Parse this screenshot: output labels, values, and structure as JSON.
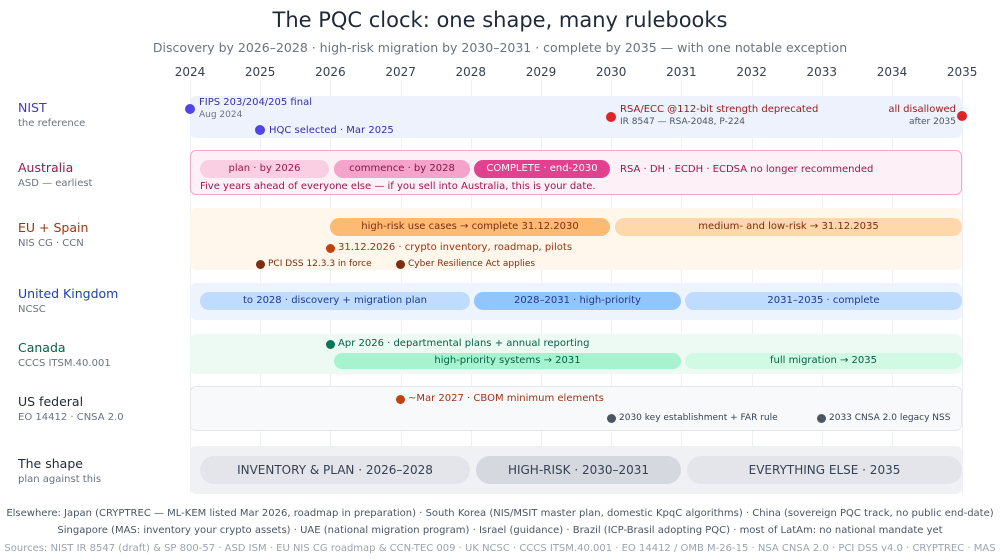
{
  "title": "The PQC clock: one shape, many rulebooks",
  "subtitle": "Discovery by 2026–2028 · high-risk migration by 2030–2031 · complete by 2035 — with one notable exception",
  "years": [
    "2024",
    "2025",
    "2026",
    "2027",
    "2028",
    "2029",
    "2030",
    "2031",
    "2032",
    "2033",
    "2034",
    "2035"
  ],
  "colors": {
    "nist": "#4f46e5",
    "red": "#dc2626",
    "australia": "#db2777",
    "eu": "#c2410c",
    "uk": "#1e40af",
    "canada": "#047857",
    "us": "#374151"
  },
  "rows": {
    "nist": {
      "name": "NIST",
      "sub": "the reference",
      "fips_title": "FIPS 203/204/205 final",
      "fips_date": "Aug 2024",
      "hqc": "HQC selected · Mar 2025",
      "rsa_title": "RSA/ECC @112-bit strength deprecated",
      "rsa_sub": "IR 8547 — RSA-2048, P-224",
      "disallow_title": "all disallowed",
      "disallow_sub": "after 2035"
    },
    "australia": {
      "name": "Australia",
      "sub": "ASD — earliest",
      "plan": "plan · by 2026",
      "commence": "commence · by 2028",
      "complete": "COMPLETE · end-2030",
      "algos": "RSA · DH · ECDH · ECDSA no longer recommended",
      "note": "Five years ahead of everyone else — if you sell into Australia, this is your date."
    },
    "eu": {
      "name": "EU + Spain",
      "sub": "NIS CG · CCN",
      "high": "high-risk use cases → complete 31.12.2030",
      "medium": "medium- and low-risk → 31.12.2035",
      "inventory": "31.12.2026 · crypto inventory, roadmap, pilots",
      "pci": "PCI DSS 12.3.3 in force",
      "cra": "Cyber Resilience Act applies"
    },
    "uk": {
      "name": "United Kingdom",
      "sub": "NCSC",
      "p1": "to 2028 · discovery + migration plan",
      "p2": "2028–2031 · high-priority",
      "p3": "2031–2035 · complete"
    },
    "canada": {
      "name": "Canada",
      "sub": "CCCS ITSM.40.001",
      "apr": "Apr 2026 · departmental plans + annual reporting",
      "high": "high-priority systems → 2031",
      "full": "full migration → 2035"
    },
    "us": {
      "name": "US federal",
      "sub": "EO 14412 · CNSA 2.0",
      "cbom": "~Mar 2027 · CBOM minimum elements",
      "key": "2030 key establishment + FAR rule",
      "cnsa": "2033 CNSA 2.0 legacy NSS"
    },
    "shape": {
      "name": "The shape",
      "sub": "plan against this",
      "s1": "INVENTORY & PLAN · 2026–2028",
      "s2": "HIGH-RISK · 2030–2031",
      "s3": "EVERYTHING ELSE · 2035"
    }
  },
  "footer": {
    "line1": "Elsewhere: Japan (CRYPTREC — ML-KEM listed Mar 2026, roadmap in preparation) · South Korea (NIS/MSIT master plan, domestic KpqC algorithms) · China (sovereign PQC track, no public end-date)",
    "line2": "Singapore (MAS: inventory your crypto assets) · UAE (national migration program) · Israel (guidance) · Brazil (ICP-Brasil adopting PQC) · most of LatAm: no national mandate yet",
    "sources": "Sources: NIST IR 8547 (draft) & SP 800-57 · ASD ISM · EU NIS CG roadmap & CCN-TEC 009 · UK NCSC · CCCS ITSM.40.001 · EO 14412 / OMB M-26-15 · NSA CNSA 2.0 · PCI DSS v4.0 · CRYPTREC · MAS"
  }
}
